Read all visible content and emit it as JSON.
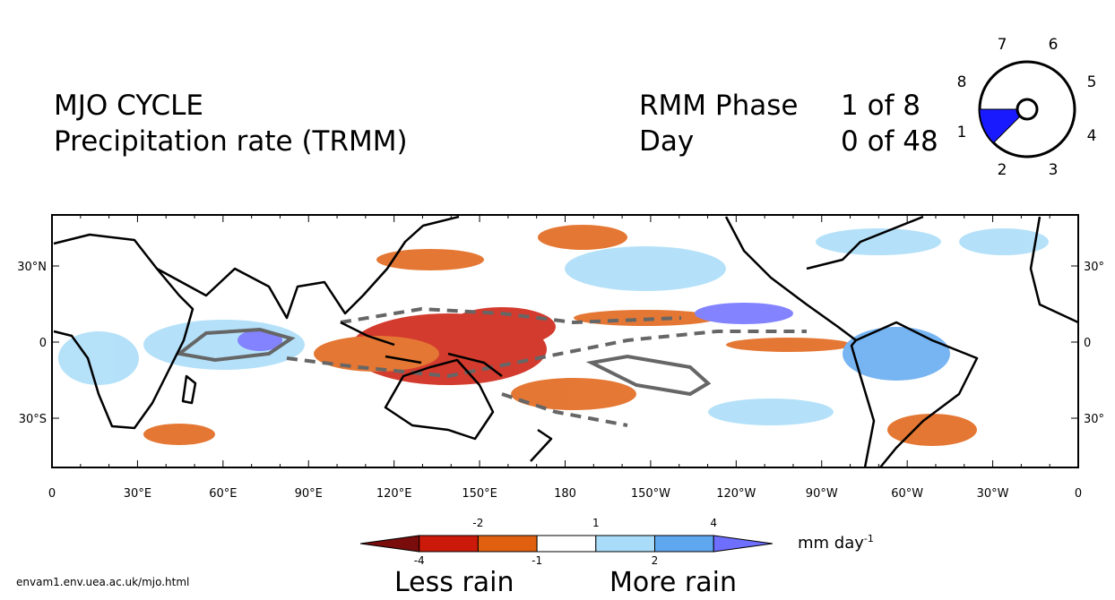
{
  "header": {
    "title": "MJO CYCLE",
    "subtitle": "Precipitation rate (TRMM)",
    "phase_label": "RMM Phase",
    "phase_value": "1 of 8",
    "day_label": "Day",
    "day_value": "0 of 48"
  },
  "phase_dial": {
    "labels": [
      "1",
      "2",
      "3",
      "4",
      "5",
      "6",
      "7",
      "8"
    ],
    "active_color": "#1a1aff"
  },
  "map": {
    "x_labels": [
      "0",
      "30°E",
      "60°E",
      "90°E",
      "120°E",
      "150°E",
      "180",
      "150°W",
      "120°W",
      "90°W",
      "60°W",
      "30°W",
      "0"
    ],
    "y_labels_left": [
      "30°N",
      "0",
      "30°S"
    ],
    "y_labels_right": [
      "30°",
      "0",
      "30°"
    ]
  },
  "colorbar": {
    "upper_labels": [
      -2,
      1,
      4
    ],
    "lower_labels": [
      -4,
      -1,
      2
    ],
    "colors": [
      "#7a0c0c",
      "#cc1a0a",
      "#e06010",
      "#ffffff",
      "#a8dcf8",
      "#5fa8f0",
      "#6e6eff"
    ],
    "units": "mm day",
    "units_exponent": "-1",
    "less": "Less rain",
    "more": "More rain"
  },
  "footer": "envam1.env.uea.ac.uk/mjo.html"
}
